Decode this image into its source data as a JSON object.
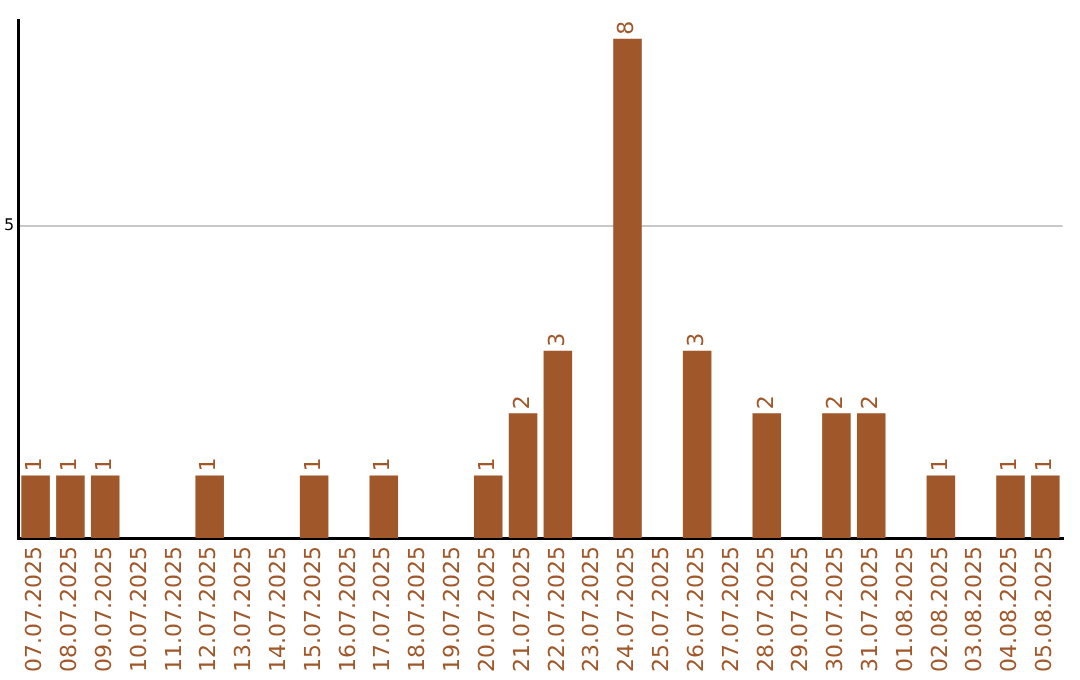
{
  "chart_data": {
    "type": "bar",
    "categories": [
      "07.07.2025",
      "08.07.2025",
      "09.07.2025",
      "10.07.2025",
      "11.07.2025",
      "12.07.2025",
      "13.07.2025",
      "14.07.2025",
      "15.07.2025",
      "16.07.2025",
      "17.07.2025",
      "18.07.2025",
      "19.07.2025",
      "20.07.2025",
      "21.07.2025",
      "22.07.2025",
      "23.07.2025",
      "24.07.2025",
      "25.07.2025",
      "26.07.2025",
      "27.07.2025",
      "28.07.2025",
      "29.07.2025",
      "30.07.2025",
      "31.07.2025",
      "01.08.2025",
      "02.08.2025",
      "03.08.2025",
      "04.08.2025",
      "05.08.2025"
    ],
    "values": [
      1,
      1,
      1,
      0,
      0,
      1,
      0,
      0,
      1,
      0,
      1,
      0,
      0,
      1,
      2,
      3,
      0,
      8,
      0,
      3,
      0,
      2,
      0,
      2,
      2,
      0,
      1,
      0,
      1,
      1
    ],
    "value_labels": [
      "1",
      "1",
      "1",
      null,
      null,
      "1",
      null,
      null,
      "1",
      null,
      "1",
      null,
      null,
      "1",
      "2",
      "3",
      null,
      "8",
      null,
      "3",
      null,
      "2",
      null,
      "2",
      "2",
      null,
      "1",
      null,
      "1",
      "1"
    ],
    "color": "#a0572a",
    "ylim": [
      0,
      8.3
    ],
    "yticks": [
      5
    ],
    "grid": "y",
    "legend": false
  }
}
